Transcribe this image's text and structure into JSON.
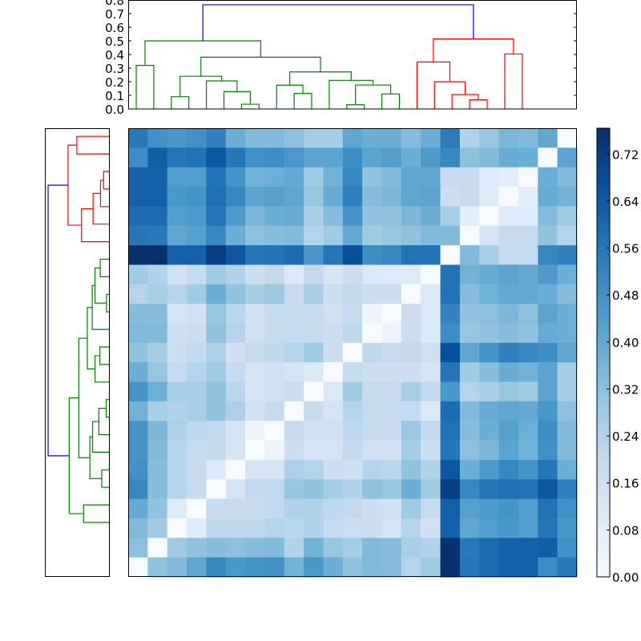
{
  "chart_data": {
    "type": "heatmap",
    "colormap": "Blues",
    "vmin": 0.0,
    "vmax": 0.764,
    "matrix": [
      [
        0.55,
        0.48,
        0.46,
        0.48,
        0.53,
        0.38,
        0.34,
        0.34,
        0.32,
        0.27,
        0.27,
        0.41,
        0.38,
        0.38,
        0.33,
        0.38,
        0.54,
        0.24,
        0.3,
        0.35,
        0.34,
        0.41,
        0.0
      ],
      [
        0.49,
        0.63,
        0.56,
        0.57,
        0.65,
        0.56,
        0.48,
        0.49,
        0.46,
        0.42,
        0.42,
        0.49,
        0.42,
        0.44,
        0.38,
        0.45,
        0.51,
        0.32,
        0.34,
        0.39,
        0.38,
        0.0,
        0.42
      ],
      [
        0.62,
        0.62,
        0.44,
        0.44,
        0.57,
        0.47,
        0.37,
        0.38,
        0.4,
        0.28,
        0.37,
        0.51,
        0.31,
        0.34,
        0.41,
        0.41,
        0.19,
        0.19,
        0.1,
        0.08,
        0.0,
        0.38,
        0.34
      ],
      [
        0.62,
        0.62,
        0.46,
        0.47,
        0.58,
        0.51,
        0.42,
        0.43,
        0.41,
        0.3,
        0.39,
        0.53,
        0.33,
        0.35,
        0.41,
        0.42,
        0.17,
        0.19,
        0.1,
        0.0,
        0.08,
        0.39,
        0.37
      ],
      [
        0.59,
        0.59,
        0.44,
        0.45,
        0.56,
        0.45,
        0.35,
        0.38,
        0.39,
        0.26,
        0.33,
        0.47,
        0.31,
        0.31,
        0.35,
        0.38,
        0.26,
        0.08,
        0.0,
        0.1,
        0.1,
        0.33,
        0.28
      ],
      [
        0.56,
        0.55,
        0.41,
        0.43,
        0.51,
        0.38,
        0.32,
        0.33,
        0.34,
        0.23,
        0.28,
        0.4,
        0.28,
        0.3,
        0.31,
        0.34,
        0.34,
        0.0,
        0.13,
        0.19,
        0.19,
        0.31,
        0.23
      ],
      [
        0.76,
        0.76,
        0.62,
        0.62,
        0.72,
        0.65,
        0.56,
        0.57,
        0.59,
        0.46,
        0.56,
        0.67,
        0.49,
        0.51,
        0.57,
        0.57,
        0.0,
        0.34,
        0.26,
        0.19,
        0.19,
        0.51,
        0.53
      ],
      [
        0.28,
        0.24,
        0.15,
        0.19,
        0.28,
        0.24,
        0.17,
        0.2,
        0.11,
        0.2,
        0.13,
        0.17,
        0.11,
        0.1,
        0.1,
        0.0,
        0.57,
        0.37,
        0.39,
        0.42,
        0.4,
        0.45,
        0.38
      ],
      [
        0.23,
        0.26,
        0.23,
        0.28,
        0.38,
        0.31,
        0.27,
        0.29,
        0.19,
        0.26,
        0.17,
        0.2,
        0.17,
        0.17,
        0.0,
        0.11,
        0.57,
        0.33,
        0.37,
        0.4,
        0.4,
        0.38,
        0.33
      ],
      [
        0.33,
        0.33,
        0.14,
        0.15,
        0.3,
        0.22,
        0.15,
        0.19,
        0.19,
        0.19,
        0.15,
        0.19,
        0.04,
        0.0,
        0.17,
        0.11,
        0.52,
        0.31,
        0.32,
        0.35,
        0.32,
        0.42,
        0.38
      ],
      [
        0.34,
        0.34,
        0.16,
        0.17,
        0.31,
        0.23,
        0.15,
        0.19,
        0.19,
        0.19,
        0.17,
        0.21,
        0.0,
        0.04,
        0.17,
        0.11,
        0.49,
        0.3,
        0.31,
        0.33,
        0.31,
        0.39,
        0.38
      ],
      [
        0.31,
        0.27,
        0.17,
        0.2,
        0.25,
        0.16,
        0.19,
        0.21,
        0.23,
        0.28,
        0.17,
        0.0,
        0.21,
        0.19,
        0.2,
        0.15,
        0.67,
        0.41,
        0.47,
        0.53,
        0.51,
        0.49,
        0.41
      ],
      [
        0.38,
        0.3,
        0.19,
        0.23,
        0.28,
        0.19,
        0.13,
        0.15,
        0.13,
        0.11,
        0.0,
        0.19,
        0.17,
        0.17,
        0.17,
        0.13,
        0.56,
        0.28,
        0.33,
        0.39,
        0.37,
        0.42,
        0.27
      ],
      [
        0.47,
        0.38,
        0.26,
        0.26,
        0.31,
        0.22,
        0.13,
        0.15,
        0.17,
        0.0,
        0.11,
        0.28,
        0.19,
        0.19,
        0.26,
        0.2,
        0.46,
        0.23,
        0.26,
        0.3,
        0.28,
        0.42,
        0.27
      ],
      [
        0.37,
        0.26,
        0.24,
        0.26,
        0.31,
        0.25,
        0.15,
        0.19,
        0.0,
        0.19,
        0.13,
        0.23,
        0.19,
        0.19,
        0.19,
        0.11,
        0.59,
        0.34,
        0.39,
        0.41,
        0.4,
        0.46,
        0.32
      ],
      [
        0.47,
        0.35,
        0.25,
        0.21,
        0.2,
        0.13,
        0.04,
        0.0,
        0.19,
        0.15,
        0.15,
        0.21,
        0.19,
        0.19,
        0.29,
        0.2,
        0.57,
        0.33,
        0.38,
        0.43,
        0.38,
        0.49,
        0.34
      ],
      [
        0.47,
        0.34,
        0.23,
        0.19,
        0.2,
        0.13,
        0.0,
        0.04,
        0.17,
        0.13,
        0.13,
        0.2,
        0.15,
        0.15,
        0.27,
        0.17,
        0.56,
        0.32,
        0.35,
        0.42,
        0.37,
        0.48,
        0.34
      ],
      [
        0.48,
        0.33,
        0.23,
        0.19,
        0.11,
        0.0,
        0.13,
        0.13,
        0.25,
        0.23,
        0.17,
        0.16,
        0.23,
        0.22,
        0.31,
        0.24,
        0.65,
        0.38,
        0.45,
        0.51,
        0.47,
        0.56,
        0.38
      ],
      [
        0.51,
        0.33,
        0.23,
        0.19,
        0.0,
        0.13,
        0.2,
        0.2,
        0.3,
        0.31,
        0.27,
        0.24,
        0.31,
        0.3,
        0.38,
        0.28,
        0.72,
        0.51,
        0.56,
        0.58,
        0.57,
        0.65,
        0.53
      ],
      [
        0.4,
        0.31,
        0.1,
        0.0,
        0.19,
        0.19,
        0.19,
        0.2,
        0.24,
        0.24,
        0.21,
        0.2,
        0.17,
        0.15,
        0.28,
        0.19,
        0.62,
        0.43,
        0.45,
        0.47,
        0.44,
        0.57,
        0.48
      ],
      [
        0.34,
        0.28,
        0.0,
        0.1,
        0.21,
        0.21,
        0.21,
        0.23,
        0.22,
        0.24,
        0.19,
        0.17,
        0.17,
        0.14,
        0.23,
        0.15,
        0.62,
        0.41,
        0.44,
        0.46,
        0.44,
        0.56,
        0.46
      ],
      [
        0.32,
        0.0,
        0.28,
        0.31,
        0.33,
        0.32,
        0.33,
        0.34,
        0.24,
        0.37,
        0.3,
        0.27,
        0.34,
        0.33,
        0.26,
        0.24,
        0.76,
        0.55,
        0.59,
        0.62,
        0.62,
        0.63,
        0.48
      ],
      [
        0.0,
        0.31,
        0.34,
        0.41,
        0.51,
        0.46,
        0.47,
        0.48,
        0.37,
        0.46,
        0.38,
        0.31,
        0.34,
        0.33,
        0.23,
        0.28,
        0.76,
        0.56,
        0.59,
        0.62,
        0.62,
        0.49,
        0.55
      ]
    ],
    "colorbar": {
      "ticks": [
        0.0,
        0.08,
        0.16,
        0.24,
        0.32,
        0.4,
        0.48,
        0.56,
        0.64,
        0.72
      ],
      "tick_labels": [
        "0.00",
        "0.08",
        "0.16",
        "0.24",
        "0.32",
        "0.40",
        "0.48",
        "0.56",
        "0.64",
        "0.72"
      ]
    },
    "dendrogram": {
      "height_axis": {
        "ylim": [
          0.0,
          0.8
        ],
        "ticks": [
          0.0,
          0.1,
          0.2,
          0.3,
          0.4,
          0.5,
          0.6,
          0.7,
          0.8
        ],
        "tick_labels": [
          "0.0",
          "0.1",
          "0.2",
          "0.3",
          "0.4",
          "0.5",
          "0.6",
          "0.7",
          "0.8"
        ]
      },
      "leaf_count": 23,
      "colors": {
        "green": "#008000",
        "red": "#ff0000",
        "blue": "#0000ff"
      },
      "links": [
        {
          "x": [
            5,
            15
          ],
          "h": [
            0,
            0.32,
            0
          ],
          "color": "green"
        },
        {
          "x": [
            25,
            35
          ],
          "h": [
            0,
            0.09,
            0
          ],
          "color": "green"
        },
        {
          "x": [
            65,
            75
          ],
          "h": [
            0,
            0.035,
            0
          ],
          "color": "green"
        },
        {
          "x": [
            55,
            70
          ],
          "h": [
            0,
            0.127,
            0.035
          ],
          "color": "green"
        },
        {
          "x": [
            45,
            62.5
          ],
          "h": [
            0,
            0.206,
            0.127
          ],
          "color": "green"
        },
        {
          "x": [
            30,
            53.75
          ],
          "h": [
            0.09,
            0.24,
            0.206
          ],
          "color": "green"
        },
        {
          "x": [
            95,
            105
          ],
          "h": [
            0,
            0.114,
            0
          ],
          "color": "green"
        },
        {
          "x": [
            85,
            100
          ],
          "h": [
            0,
            0.175,
            0.114
          ],
          "color": "green"
        },
        {
          "x": [
            125,
            135
          ],
          "h": [
            0,
            0.031,
            0
          ],
          "color": "green"
        },
        {
          "x": [
            145,
            155
          ],
          "h": [
            0,
            0.11,
            0
          ],
          "color": "green"
        },
        {
          "x": [
            130,
            150
          ],
          "h": [
            0.031,
            0.176,
            0.11
          ],
          "color": "green"
        },
        {
          "x": [
            115,
            140
          ],
          "h": [
            0,
            0.21,
            0.176
          ],
          "color": "green"
        },
        {
          "x": [
            92.5,
            127.5
          ],
          "h": [
            0.175,
            0.272,
            0.21
          ],
          "color": "green"
        },
        {
          "x": [
            41.875,
            110
          ],
          "h": [
            0.24,
            0.38,
            0.272
          ],
          "color": "green"
        },
        {
          "x": [
            10,
            75.9375
          ],
          "h": [
            0.32,
            0.5,
            0.38
          ],
          "color": "green"
        },
        {
          "x": [
            195,
            205
          ],
          "h": [
            0,
            0.067,
            0
          ],
          "color": "red"
        },
        {
          "x": [
            185,
            200
          ],
          "h": [
            0,
            0.106,
            0.067
          ],
          "color": "red"
        },
        {
          "x": [
            175,
            192.5
          ],
          "h": [
            0,
            0.2,
            0.106
          ],
          "color": "red"
        },
        {
          "x": [
            165,
            183.75
          ],
          "h": [
            0,
            0.345,
            0.2
          ],
          "color": "red"
        },
        {
          "x": [
            215,
            225
          ],
          "h": [
            0,
            0.404,
            0
          ],
          "color": "red"
        },
        {
          "x": [
            174.375,
            220
          ],
          "h": [
            0.345,
            0.514,
            0.404
          ],
          "color": "red"
        },
        {
          "x": [
            42.97,
            197.19
          ],
          "h": [
            0.5,
            0.765,
            0.514
          ],
          "color": "blue"
        }
      ]
    }
  }
}
